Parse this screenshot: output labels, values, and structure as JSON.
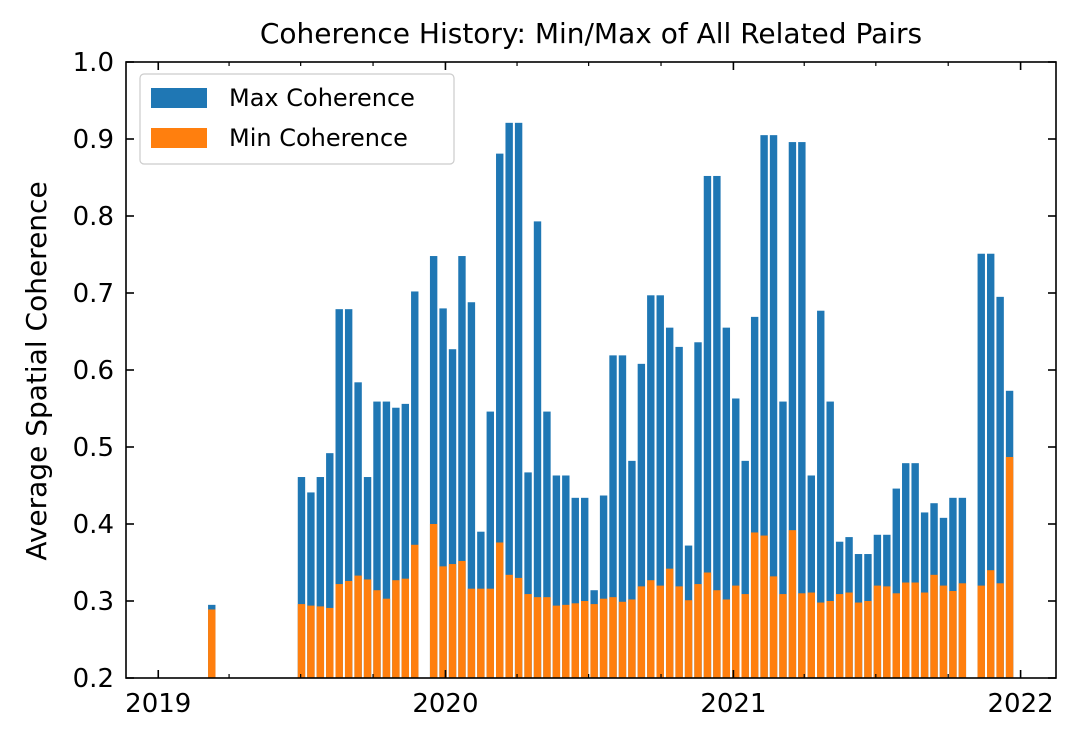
{
  "chart_data": {
    "type": "bar",
    "title": "Coherence History: Min/Max of All Related Pairs",
    "xlabel": "",
    "ylabel": "Average Spatial Coherence",
    "ylim": [
      0.2,
      1.0
    ],
    "xlim": [
      "2018-11-21",
      "2022-02-15"
    ],
    "yticks": [
      "0.2",
      "0.3",
      "0.4",
      "0.5",
      "0.6",
      "0.7",
      "0.8",
      "0.9",
      "1.0"
    ],
    "xticks": [
      {
        "label": "2019",
        "date": "2019-01-01"
      },
      {
        "label": "2020",
        "date": "2020-01-01"
      },
      {
        "label": "2021",
        "date": "2021-01-01"
      },
      {
        "label": "2022",
        "date": "2022-01-01"
      }
    ],
    "legend_position": "top-left",
    "grid": false,
    "series": [
      {
        "name": "Max Coherence",
        "color": "#1f77b4",
        "points": [
          [
            "2019-03-10",
            0.295
          ],
          [
            "2019-07-02",
            0.461
          ],
          [
            "2019-07-14",
            0.441
          ],
          [
            "2019-07-26",
            0.461
          ],
          [
            "2019-08-07",
            0.492
          ],
          [
            "2019-08-19",
            0.679
          ],
          [
            "2019-08-31",
            0.679
          ],
          [
            "2019-09-12",
            0.584
          ],
          [
            "2019-09-24",
            0.461
          ],
          [
            "2019-10-06",
            0.559
          ],
          [
            "2019-10-18",
            0.559
          ],
          [
            "2019-10-30",
            0.551
          ],
          [
            "2019-11-11",
            0.556
          ],
          [
            "2019-11-23",
            0.702
          ],
          [
            "2019-12-17",
            0.748
          ],
          [
            "2019-12-29",
            0.68
          ],
          [
            "2020-01-10",
            0.627
          ],
          [
            "2020-01-22",
            0.748
          ],
          [
            "2020-02-03",
            0.688
          ],
          [
            "2020-02-15",
            0.39
          ],
          [
            "2020-02-27",
            0.546
          ],
          [
            "2020-03-10",
            0.881
          ],
          [
            "2020-03-22",
            0.921
          ],
          [
            "2020-04-03",
            0.921
          ],
          [
            "2020-04-15",
            0.467
          ],
          [
            "2020-04-27",
            0.793
          ],
          [
            "2020-05-09",
            0.546
          ],
          [
            "2020-05-21",
            0.463
          ],
          [
            "2020-06-02",
            0.463
          ],
          [
            "2020-06-14",
            0.434
          ],
          [
            "2020-06-26",
            0.434
          ],
          [
            "2020-07-08",
            0.314
          ],
          [
            "2020-07-20",
            0.437
          ],
          [
            "2020-08-01",
            0.619
          ],
          [
            "2020-08-13",
            0.619
          ],
          [
            "2020-08-25",
            0.482
          ],
          [
            "2020-09-06",
            0.608
          ],
          [
            "2020-09-18",
            0.697
          ],
          [
            "2020-09-30",
            0.697
          ],
          [
            "2020-10-12",
            0.655
          ],
          [
            "2020-10-24",
            0.63
          ],
          [
            "2020-11-05",
            0.372
          ],
          [
            "2020-11-17",
            0.636
          ],
          [
            "2020-11-29",
            0.852
          ],
          [
            "2020-12-11",
            0.852
          ],
          [
            "2020-12-23",
            0.655
          ],
          [
            "2021-01-04",
            0.563
          ],
          [
            "2021-01-16",
            0.482
          ],
          [
            "2021-01-28",
            0.669
          ],
          [
            "2021-02-09",
            0.905
          ],
          [
            "2021-02-21",
            0.905
          ],
          [
            "2021-03-05",
            0.559
          ],
          [
            "2021-03-17",
            0.896
          ],
          [
            "2021-03-29",
            0.896
          ],
          [
            "2021-04-10",
            0.463
          ],
          [
            "2021-04-22",
            0.677
          ],
          [
            "2021-05-04",
            0.559
          ],
          [
            "2021-05-16",
            0.377
          ],
          [
            "2021-05-28",
            0.383
          ],
          [
            "2021-06-09",
            0.361
          ],
          [
            "2021-06-21",
            0.361
          ],
          [
            "2021-07-03",
            0.386
          ],
          [
            "2021-07-15",
            0.386
          ],
          [
            "2021-07-27",
            0.446
          ],
          [
            "2021-08-08",
            0.479
          ],
          [
            "2021-08-20",
            0.479
          ],
          [
            "2021-09-01",
            0.415
          ],
          [
            "2021-09-13",
            0.427
          ],
          [
            "2021-09-25",
            0.408
          ],
          [
            "2021-10-07",
            0.434
          ],
          [
            "2021-10-19",
            0.434
          ],
          [
            "2021-11-12",
            0.751
          ],
          [
            "2021-11-24",
            0.751
          ],
          [
            "2021-12-06",
            0.695
          ],
          [
            "2021-12-18",
            0.573
          ]
        ]
      },
      {
        "name": "Min Coherence",
        "color": "#ff7f0e",
        "points": [
          [
            "2019-03-10",
            0.289
          ],
          [
            "2019-07-02",
            0.296
          ],
          [
            "2019-07-14",
            0.294
          ],
          [
            "2019-07-26",
            0.293
          ],
          [
            "2019-08-07",
            0.291
          ],
          [
            "2019-08-19",
            0.322
          ],
          [
            "2019-08-31",
            0.326
          ],
          [
            "2019-09-12",
            0.333
          ],
          [
            "2019-09-24",
            0.328
          ],
          [
            "2019-10-06",
            0.314
          ],
          [
            "2019-10-18",
            0.303
          ],
          [
            "2019-10-30",
            0.327
          ],
          [
            "2019-11-11",
            0.329
          ],
          [
            "2019-11-23",
            0.373
          ],
          [
            "2019-12-17",
            0.4
          ],
          [
            "2019-12-29",
            0.345
          ],
          [
            "2020-01-10",
            0.348
          ],
          [
            "2020-01-22",
            0.352
          ],
          [
            "2020-02-03",
            0.316
          ],
          [
            "2020-02-15",
            0.316
          ],
          [
            "2020-02-27",
            0.316
          ],
          [
            "2020-03-10",
            0.376
          ],
          [
            "2020-03-22",
            0.334
          ],
          [
            "2020-04-03",
            0.33
          ],
          [
            "2020-04-15",
            0.309
          ],
          [
            "2020-04-27",
            0.305
          ],
          [
            "2020-05-09",
            0.305
          ],
          [
            "2020-05-21",
            0.294
          ],
          [
            "2020-06-02",
            0.295
          ],
          [
            "2020-06-14",
            0.297
          ],
          [
            "2020-06-26",
            0.3
          ],
          [
            "2020-07-08",
            0.296
          ],
          [
            "2020-07-20",
            0.303
          ],
          [
            "2020-08-01",
            0.305
          ],
          [
            "2020-08-13",
            0.299
          ],
          [
            "2020-08-25",
            0.302
          ],
          [
            "2020-09-06",
            0.319
          ],
          [
            "2020-09-18",
            0.327
          ],
          [
            "2020-09-30",
            0.32
          ],
          [
            "2020-10-12",
            0.342
          ],
          [
            "2020-10-24",
            0.319
          ],
          [
            "2020-11-05",
            0.301
          ],
          [
            "2020-11-17",
            0.322
          ],
          [
            "2020-11-29",
            0.337
          ],
          [
            "2020-12-11",
            0.314
          ],
          [
            "2020-12-23",
            0.302
          ],
          [
            "2021-01-04",
            0.32
          ],
          [
            "2021-01-16",
            0.309
          ],
          [
            "2021-01-28",
            0.389
          ],
          [
            "2021-02-09",
            0.385
          ],
          [
            "2021-02-21",
            0.332
          ],
          [
            "2021-03-05",
            0.309
          ],
          [
            "2021-03-17",
            0.392
          ],
          [
            "2021-03-29",
            0.31
          ],
          [
            "2021-04-10",
            0.311
          ],
          [
            "2021-04-22",
            0.298
          ],
          [
            "2021-05-04",
            0.3
          ],
          [
            "2021-05-16",
            0.309
          ],
          [
            "2021-05-28",
            0.311
          ],
          [
            "2021-06-09",
            0.298
          ],
          [
            "2021-06-21",
            0.3
          ],
          [
            "2021-07-03",
            0.32
          ],
          [
            "2021-07-15",
            0.319
          ],
          [
            "2021-07-27",
            0.31
          ],
          [
            "2021-08-08",
            0.324
          ],
          [
            "2021-08-20",
            0.324
          ],
          [
            "2021-09-01",
            0.311
          ],
          [
            "2021-09-13",
            0.334
          ],
          [
            "2021-09-25",
            0.32
          ],
          [
            "2021-10-07",
            0.313
          ],
          [
            "2021-10-19",
            0.323
          ],
          [
            "2021-11-12",
            0.32
          ],
          [
            "2021-11-24",
            0.34
          ],
          [
            "2021-12-06",
            0.323
          ],
          [
            "2021-12-18",
            0.487
          ]
        ]
      }
    ]
  }
}
